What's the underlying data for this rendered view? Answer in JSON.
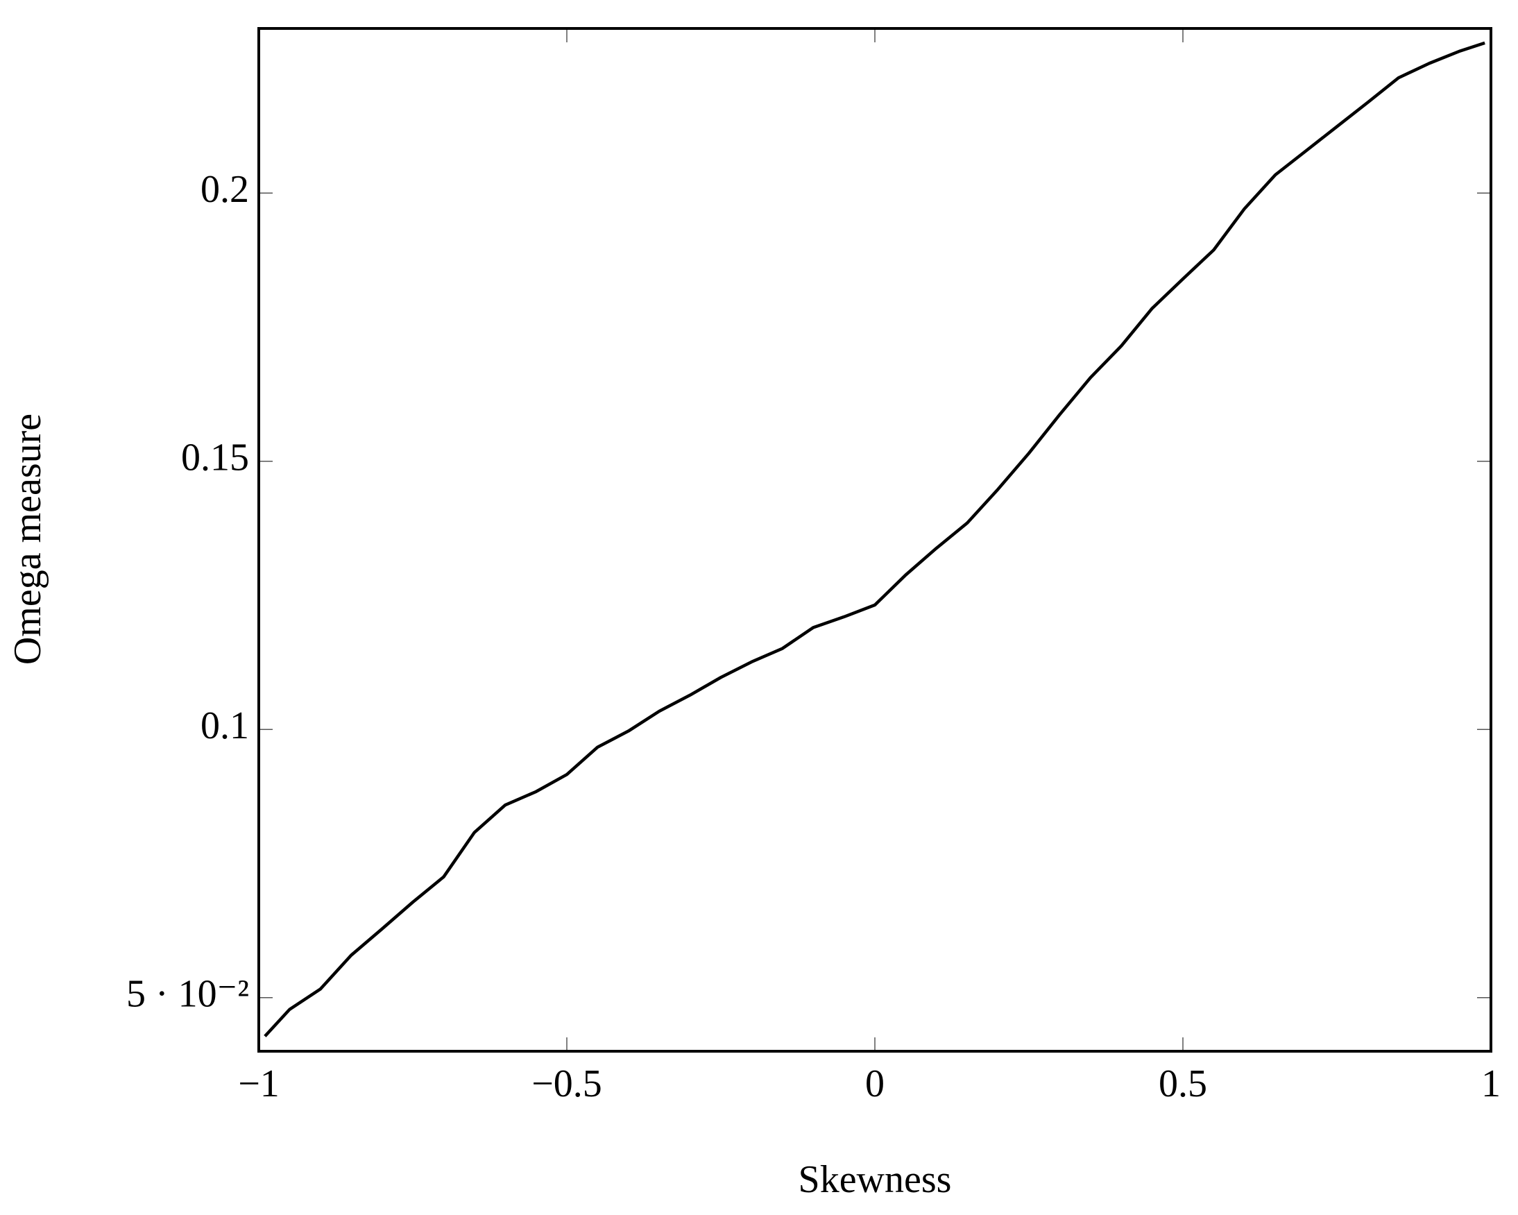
{
  "chart_data": {
    "type": "line",
    "x_label": "Skewness",
    "y_label": "Omega measure",
    "xlim": [
      -1,
      1
    ],
    "ylim": [
      0.04,
      0.2307
    ],
    "xticks": [
      {
        "value": -1,
        "label": "−1"
      },
      {
        "value": -0.5,
        "label": "−0.5"
      },
      0,
      0.5,
      1
    ],
    "yticks": [
      {
        "value": 0.05,
        "label": "5 · 10⁻²"
      },
      0.1,
      0.15,
      0.2
    ],
    "series": [
      {
        "color": "#000000",
        "x": [
          -0.99,
          -0.95,
          -0.9,
          -0.85,
          -0.8,
          -0.75,
          -0.7,
          -0.65,
          -0.6,
          -0.55,
          -0.5,
          -0.45,
          -0.4,
          -0.35,
          -0.3,
          -0.25,
          -0.2,
          -0.15,
          -0.1,
          -0.05,
          0,
          0.05,
          0.1,
          0.15,
          0.2,
          0.25,
          0.3,
          0.35,
          0.4,
          0.45,
          0.5,
          0.55,
          0.6,
          0.65,
          0.7,
          0.75,
          0.8,
          0.85,
          0.9,
          0.95,
          0.99
        ],
        "values": [
          0.0428,
          0.0478,
          0.0516,
          0.0579,
          0.0628,
          0.0678,
          0.0725,
          0.0808,
          0.0859,
          0.0884,
          0.0916,
          0.0967,
          0.0997,
          0.1034,
          0.1064,
          0.1097,
          0.1126,
          0.1151,
          0.119,
          0.121,
          0.1232,
          0.1288,
          0.1338,
          0.1385,
          0.1448,
          0.1515,
          0.1587,
          0.1656,
          0.1715,
          0.1785,
          0.184,
          0.1894,
          0.1971,
          0.2034,
          0.2079,
          0.2124,
          0.2169,
          0.2215,
          0.2242,
          0.2265,
          0.228
        ]
      }
    ]
  }
}
